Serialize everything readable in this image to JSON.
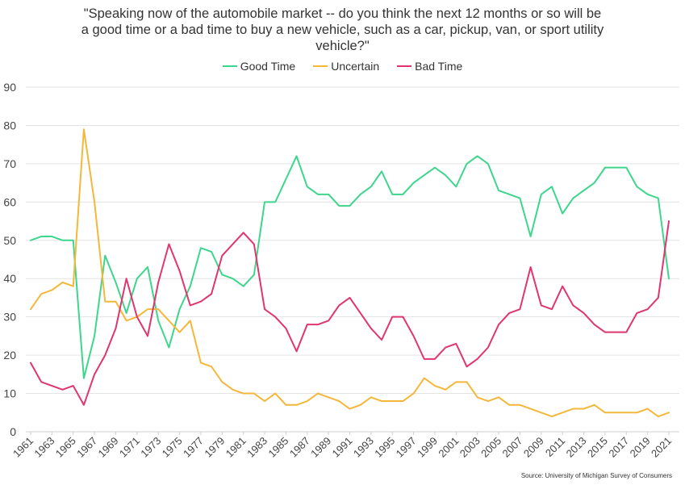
{
  "title_lines": [
    "\"Speaking now of the automobile market -- do you think the next 12 months or so will be",
    "a good time or a bad time to buy a new vehicle, such as a car, pickup, van, or sport utility",
    "vehicle?\""
  ],
  "source": "Source: University of Michigan Survey of Consumers",
  "chart_data": {
    "type": "line",
    "title": "\"Speaking now of the automobile market -- do you think the next 12 months or so will be a good time or a bad time to buy a new vehicle, such as a car, pickup, van, or sport utility vehicle?\"",
    "xlabel": "",
    "ylabel": "",
    "ylim": [
      0,
      90
    ],
    "yticks": [
      0,
      10,
      20,
      30,
      40,
      50,
      60,
      70,
      80,
      90
    ],
    "grid": true,
    "legend_position": "top-center",
    "x": [
      1961,
      1962,
      1963,
      1964,
      1965,
      1966,
      1967,
      1968,
      1969,
      1970,
      1971,
      1972,
      1973,
      1974,
      1975,
      1976,
      1977,
      1978,
      1979,
      1980,
      1981,
      1982,
      1983,
      1984,
      1985,
      1986,
      1987,
      1988,
      1989,
      1990,
      1991,
      1992,
      1993,
      1994,
      1995,
      1996,
      1997,
      1998,
      1999,
      2000,
      2001,
      2002,
      2003,
      2004,
      2005,
      2006,
      2007,
      2008,
      2009,
      2010,
      2011,
      2012,
      2013,
      2014,
      2015,
      2016,
      2017,
      2018,
      2019,
      2020,
      2021
    ],
    "xtick_labels": [
      "1961",
      "1963",
      "1965",
      "1967",
      "1969",
      "1971",
      "1973",
      "1975",
      "1977",
      "1979",
      "1981",
      "1983",
      "1985",
      "1987",
      "1989",
      "1991",
      "1993",
      "1995",
      "1997",
      "1999",
      "2001",
      "2003",
      "2005",
      "2007",
      "2009",
      "2011",
      "2013",
      "2015",
      "2017",
      "2019",
      "2021"
    ],
    "series": [
      {
        "name": "Good Time",
        "color": "#3dd68c",
        "values": [
          50,
          51,
          51,
          50,
          50,
          14,
          25,
          46,
          39,
          31,
          40,
          43,
          29,
          22,
          32,
          38,
          48,
          47,
          41,
          40,
          38,
          41,
          60,
          60,
          66,
          72,
          64,
          62,
          62,
          59,
          59,
          62,
          64,
          68,
          62,
          62,
          65,
          67,
          69,
          67,
          64,
          70,
          72,
          70,
          63,
          62,
          61,
          51,
          62,
          64,
          57,
          61,
          63,
          65,
          69,
          69,
          69,
          64,
          62,
          61,
          40
        ]
      },
      {
        "name": "Uncertain",
        "color": "#f4b73a",
        "values": [
          32,
          36,
          37,
          39,
          38,
          79,
          60,
          34,
          34,
          29,
          30,
          32,
          32,
          29,
          26,
          29,
          18,
          17,
          13,
          11,
          10,
          10,
          8,
          10,
          7,
          7,
          8,
          10,
          9,
          8,
          6,
          7,
          9,
          8,
          8,
          8,
          10,
          14,
          12,
          11,
          13,
          13,
          9,
          8,
          9,
          7,
          7,
          6,
          5,
          4,
          5,
          6,
          6,
          7,
          5,
          5,
          5,
          5,
          6,
          4,
          5
        ]
      },
      {
        "name": "Bad Time",
        "color": "#e0356e",
        "values": [
          18,
          13,
          12,
          11,
          12,
          7,
          15,
          20,
          27,
          40,
          30,
          25,
          39,
          49,
          42,
          33,
          34,
          36,
          46,
          49,
          52,
          49,
          32,
          30,
          27,
          21,
          28,
          28,
          29,
          33,
          35,
          31,
          27,
          24,
          30,
          30,
          25,
          19,
          19,
          22,
          23,
          17,
          19,
          22,
          28,
          31,
          32,
          43,
          33,
          32,
          38,
          33,
          31,
          28,
          26,
          26,
          26,
          31,
          32,
          35,
          55
        ]
      }
    ]
  }
}
